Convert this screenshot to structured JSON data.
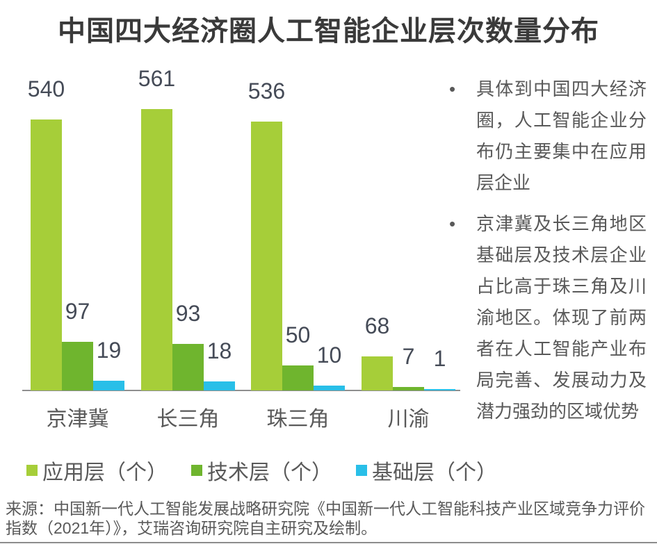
{
  "page": {
    "title": "中国四大经济圈人工智能企业层次数量分布"
  },
  "chart_data": {
    "type": "bar",
    "title": "中国四大经济圈人工智能企业层次数量分布",
    "categories": [
      "京津冀",
      "长三角",
      "珠三角",
      "川渝"
    ],
    "series": [
      {
        "name": "应用层（个）",
        "color": "#A6CE39",
        "values": [
          540,
          561,
          536,
          68
        ]
      },
      {
        "name": "技术层（个）",
        "color": "#6FB52E",
        "values": [
          97,
          93,
          50,
          7
        ]
      },
      {
        "name": "基础层（个）",
        "color": "#29BFE8",
        "values": [
          19,
          18,
          10,
          1
        ]
      }
    ],
    "xlabel": "",
    "ylabel": "",
    "ylim": [
      0,
      561
    ],
    "grid": false,
    "legend_position": "bottom",
    "data_labels": true,
    "axis_color": "#8f8f8f",
    "label_color": "#454b57",
    "text_color": "#595959"
  },
  "notes": {
    "items": [
      "具体到中国四大经济圈，人工智能企业分布仍主要集中在应用层企业",
      "京津冀及长三角地区基础层及技术层企业占比高于珠三角及川渝地区。体现了前两者在人工智能产业布局完善、发展动力及潜力强劲的区域优势"
    ],
    "bullet_glyph": "•"
  },
  "source": {
    "text": "来源：中国新一代人工智能发展战略研究院《中国新一代人工智能科技产业区域竞争力评价指数（2021年）》，艾瑞咨询研究院自主研究及绘制。"
  }
}
